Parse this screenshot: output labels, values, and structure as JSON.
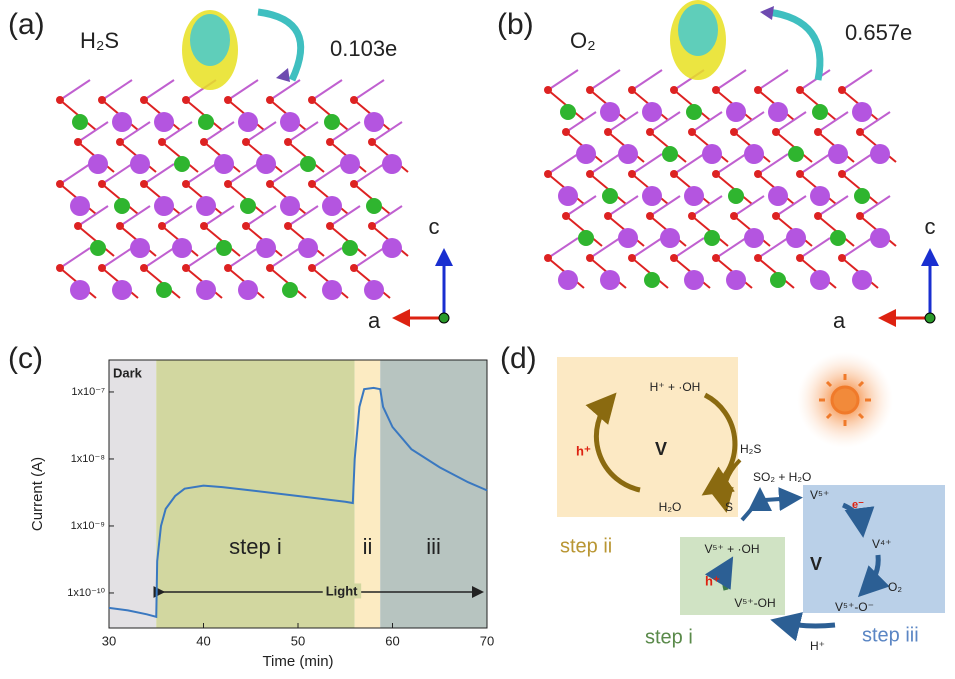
{
  "panels": {
    "a": {
      "label": "(a)",
      "molecule": "H₂S",
      "charge": "0.103e",
      "axis_c": "c",
      "axis_a": "a"
    },
    "b": {
      "label": "(b)",
      "molecule": "O₂",
      "charge": "0.657e",
      "axis_c": "c",
      "axis_a": "a"
    },
    "c": {
      "label": "(c)"
    },
    "d": {
      "label": "(d)",
      "step_ii": {
        "title": "step ii",
        "top": "H⁺ + ·OH",
        "hole": "h⁺",
        "center": "V",
        "bottom": "H₂O"
      },
      "h2s": "H₂S",
      "s": "S",
      "so2": "SO₂ + H₂O",
      "step_iii": {
        "title": "step iii",
        "v5": "V⁵⁺",
        "electron": "e⁻",
        "v4": "V⁴⁺",
        "center": "V",
        "o2": "O₂",
        "vo": "V⁵⁺-O⁻"
      },
      "step_i": {
        "title": "step i",
        "top": "V⁵⁺ + ·OH",
        "hole": "h⁺",
        "bottom": "V⁵⁺-OH"
      },
      "proton": "H⁺"
    }
  },
  "chart_data": {
    "type": "line",
    "xlabel": "Time (min)",
    "ylabel": "Current (A)",
    "xlim": [
      30,
      70
    ],
    "xticks": [
      30,
      40,
      50,
      60,
      70
    ],
    "ylog": true,
    "ylim": [
      3e-11,
      3e-07
    ],
    "yticks": [
      {
        "value": 1e-10,
        "label": "1x10⁻¹⁰"
      },
      {
        "value": 1e-09,
        "label": "1x10⁻⁹"
      },
      {
        "value": 1e-08,
        "label": "1x10⁻⁸"
      },
      {
        "value": 1e-07,
        "label": "1x10⁻⁷"
      }
    ],
    "regions": [
      {
        "label": "Dark",
        "start": 30,
        "end": 35,
        "color": "#e3e1e4"
      },
      {
        "label": "step i",
        "start": 35,
        "end": 56,
        "color": "#d2d7a0"
      },
      {
        "label": "ii",
        "start": 56,
        "end": 58.7,
        "color": "#fcebc2"
      },
      {
        "label": "iii",
        "start": 58.7,
        "end": 70,
        "color": "#b7c4c0"
      }
    ],
    "light": {
      "label": "Light",
      "start": 35,
      "end": 70
    },
    "series": [
      {
        "color": "#3a78c0",
        "x": [
          30,
          32,
          34,
          35,
          35.1,
          35.5,
          36,
          37,
          38,
          40,
          42,
          45,
          50,
          55,
          55.8,
          56,
          56.5,
          57,
          58,
          58.7,
          59,
          60,
          62,
          65,
          68,
          70
        ],
        "values": [
          6e-11,
          5.5e-11,
          4.8e-11,
          4.4e-11,
          3e-10,
          1e-09,
          1.8e-09,
          2.8e-09,
          3.6e-09,
          4e-09,
          3.8e-09,
          3.4e-09,
          2.8e-09,
          2.3e-09,
          2.2e-09,
          1e-08,
          6e-08,
          1.1e-07,
          1.15e-07,
          1.1e-07,
          6e-08,
          3e-08,
          1.4e-08,
          7.5e-09,
          4.5e-09,
          3.4e-09
        ]
      }
    ]
  }
}
